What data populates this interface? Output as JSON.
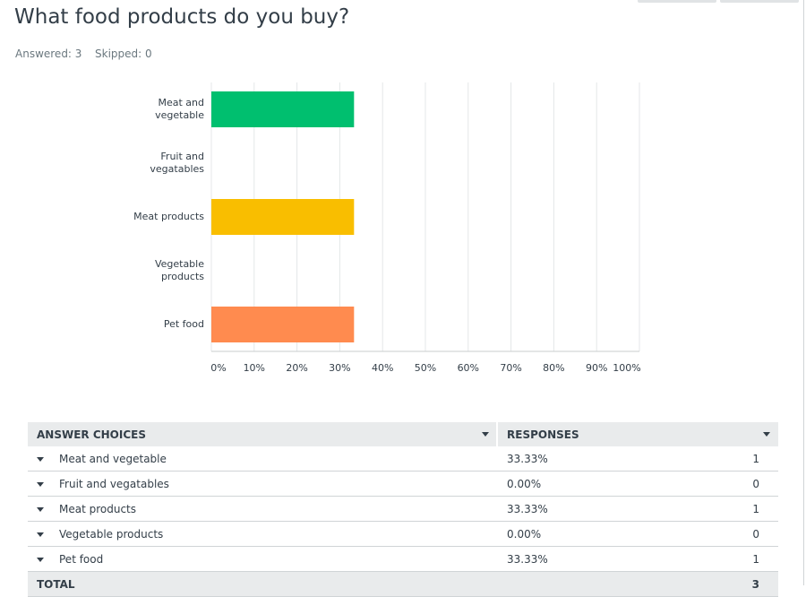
{
  "header": {
    "title": "What food products do you buy?",
    "answered": "Answered: 3",
    "skipped": "Skipped: 0"
  },
  "chart_data": {
    "type": "bar",
    "orientation": "horizontal",
    "categories": [
      "Meat and vegetable",
      "Fruit and vegatables",
      "Meat products",
      "Vegetable products",
      "Pet food"
    ],
    "values": [
      33.33,
      0,
      33.33,
      0,
      33.33
    ],
    "colors": [
      "#00bf6f",
      null,
      "#f9be00",
      null,
      "#ff8b4f"
    ],
    "xlim": [
      0,
      100
    ],
    "xticks": [
      {
        "value": 0,
        "label": "0%"
      },
      {
        "value": 10,
        "label": "10%"
      },
      {
        "value": 20,
        "label": "20%"
      },
      {
        "value": 30,
        "label": "30%"
      },
      {
        "value": 40,
        "label": "40%"
      },
      {
        "value": 50,
        "label": "50%"
      },
      {
        "value": 60,
        "label": "60%"
      },
      {
        "value": 70,
        "label": "70%"
      },
      {
        "value": 80,
        "label": "80%"
      },
      {
        "value": 90,
        "label": "90%"
      },
      {
        "value": 100,
        "label": "100%"
      }
    ],
    "grid": true
  },
  "table": {
    "headers": [
      "ANSWER CHOICES",
      "RESPONSES"
    ],
    "rows": [
      [
        "Meat and vegetable",
        "33.33%",
        "1"
      ],
      [
        "Fruit and vegatables",
        "0.00%",
        "0"
      ],
      [
        "Meat products",
        "33.33%",
        "1"
      ],
      [
        "Vegetable products",
        "0.00%",
        "0"
      ],
      [
        "Pet food",
        "33.33%",
        "1"
      ]
    ],
    "total": [
      "TOTAL",
      "3"
    ]
  }
}
